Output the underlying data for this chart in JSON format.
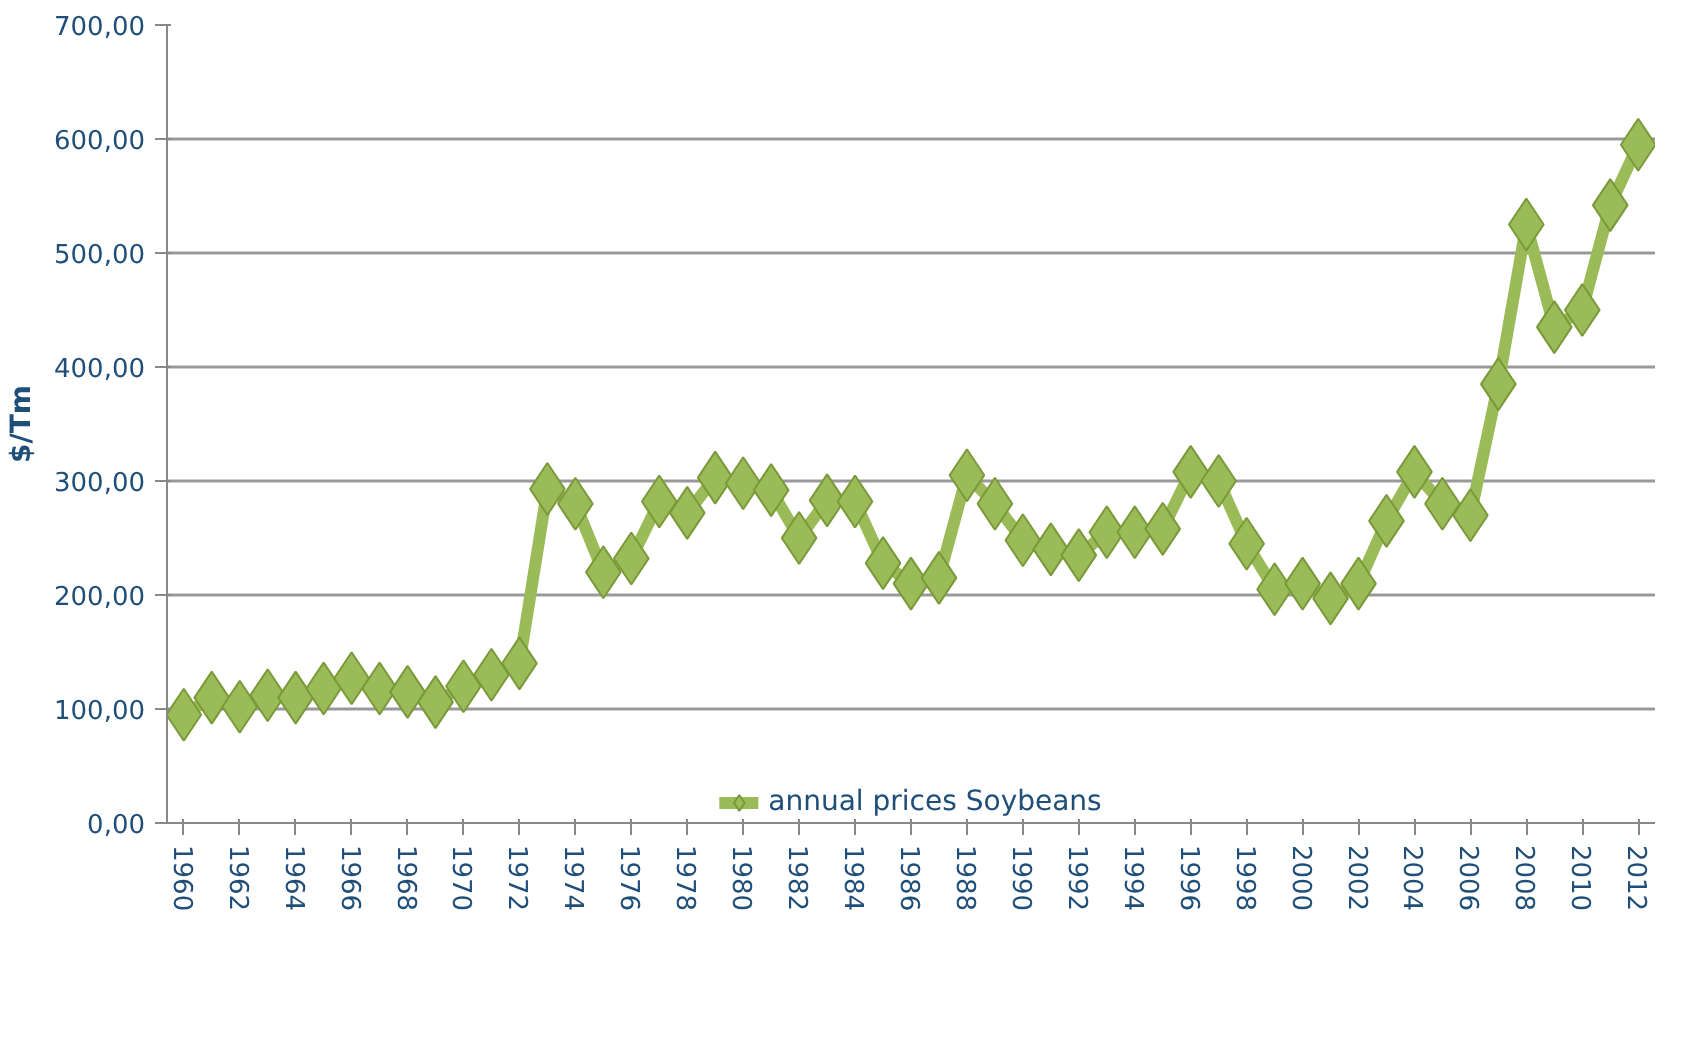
{
  "chart_data": {
    "type": "line",
    "ylabel": "$/Tm",
    "x": [
      1960,
      1961,
      1962,
      1963,
      1964,
      1965,
      1966,
      1967,
      1968,
      1969,
      1970,
      1971,
      1972,
      1973,
      1974,
      1975,
      1976,
      1977,
      1978,
      1979,
      1980,
      1981,
      1982,
      1983,
      1984,
      1985,
      1986,
      1987,
      1988,
      1989,
      1990,
      1991,
      1992,
      1993,
      1994,
      1995,
      1996,
      1997,
      1998,
      1999,
      2000,
      2001,
      2002,
      2003,
      2004,
      2005,
      2006,
      2007,
      2008,
      2009,
      2010,
      2011,
      2012
    ],
    "series": [
      {
        "name": "annual prices Soybeans",
        "color": "#9bbb59",
        "values": [
          95,
          110,
          102,
          112,
          110,
          118,
          127,
          118,
          115,
          106,
          120,
          130,
          140,
          293,
          280,
          220,
          232,
          282,
          272,
          303,
          298,
          292,
          250,
          283,
          282,
          228,
          210,
          215,
          305,
          280,
          248,
          240,
          235,
          255,
          255,
          258,
          308,
          300,
          245,
          205,
          210,
          197,
          210,
          265,
          308,
          280,
          270,
          385,
          525,
          435,
          450,
          542,
          595
        ]
      }
    ],
    "xlim": [
      1959.4,
      2012.6
    ],
    "xticks": [
      1960,
      1962,
      1964,
      1966,
      1968,
      1970,
      1972,
      1974,
      1976,
      1978,
      1980,
      1982,
      1984,
      1986,
      1988,
      1990,
      1992,
      1994,
      1996,
      1998,
      2000,
      2002,
      2004,
      2006,
      2008,
      2010,
      2012
    ],
    "ylim": [
      0,
      700
    ],
    "yticks": [
      {
        "value": 0,
        "label": "0,00"
      },
      {
        "value": 100,
        "label": "100,00"
      },
      {
        "value": 200,
        "label": "200,00"
      },
      {
        "value": 300,
        "label": "300,00"
      },
      {
        "value": 400,
        "label": "400,00"
      },
      {
        "value": 500,
        "label": "500,00"
      },
      {
        "value": 600,
        "label": "600,00"
      },
      {
        "value": 700,
        "label": "700,00"
      }
    ],
    "grid": "y",
    "legend": "bottom",
    "marker": "diamond",
    "line_style": "solid"
  }
}
